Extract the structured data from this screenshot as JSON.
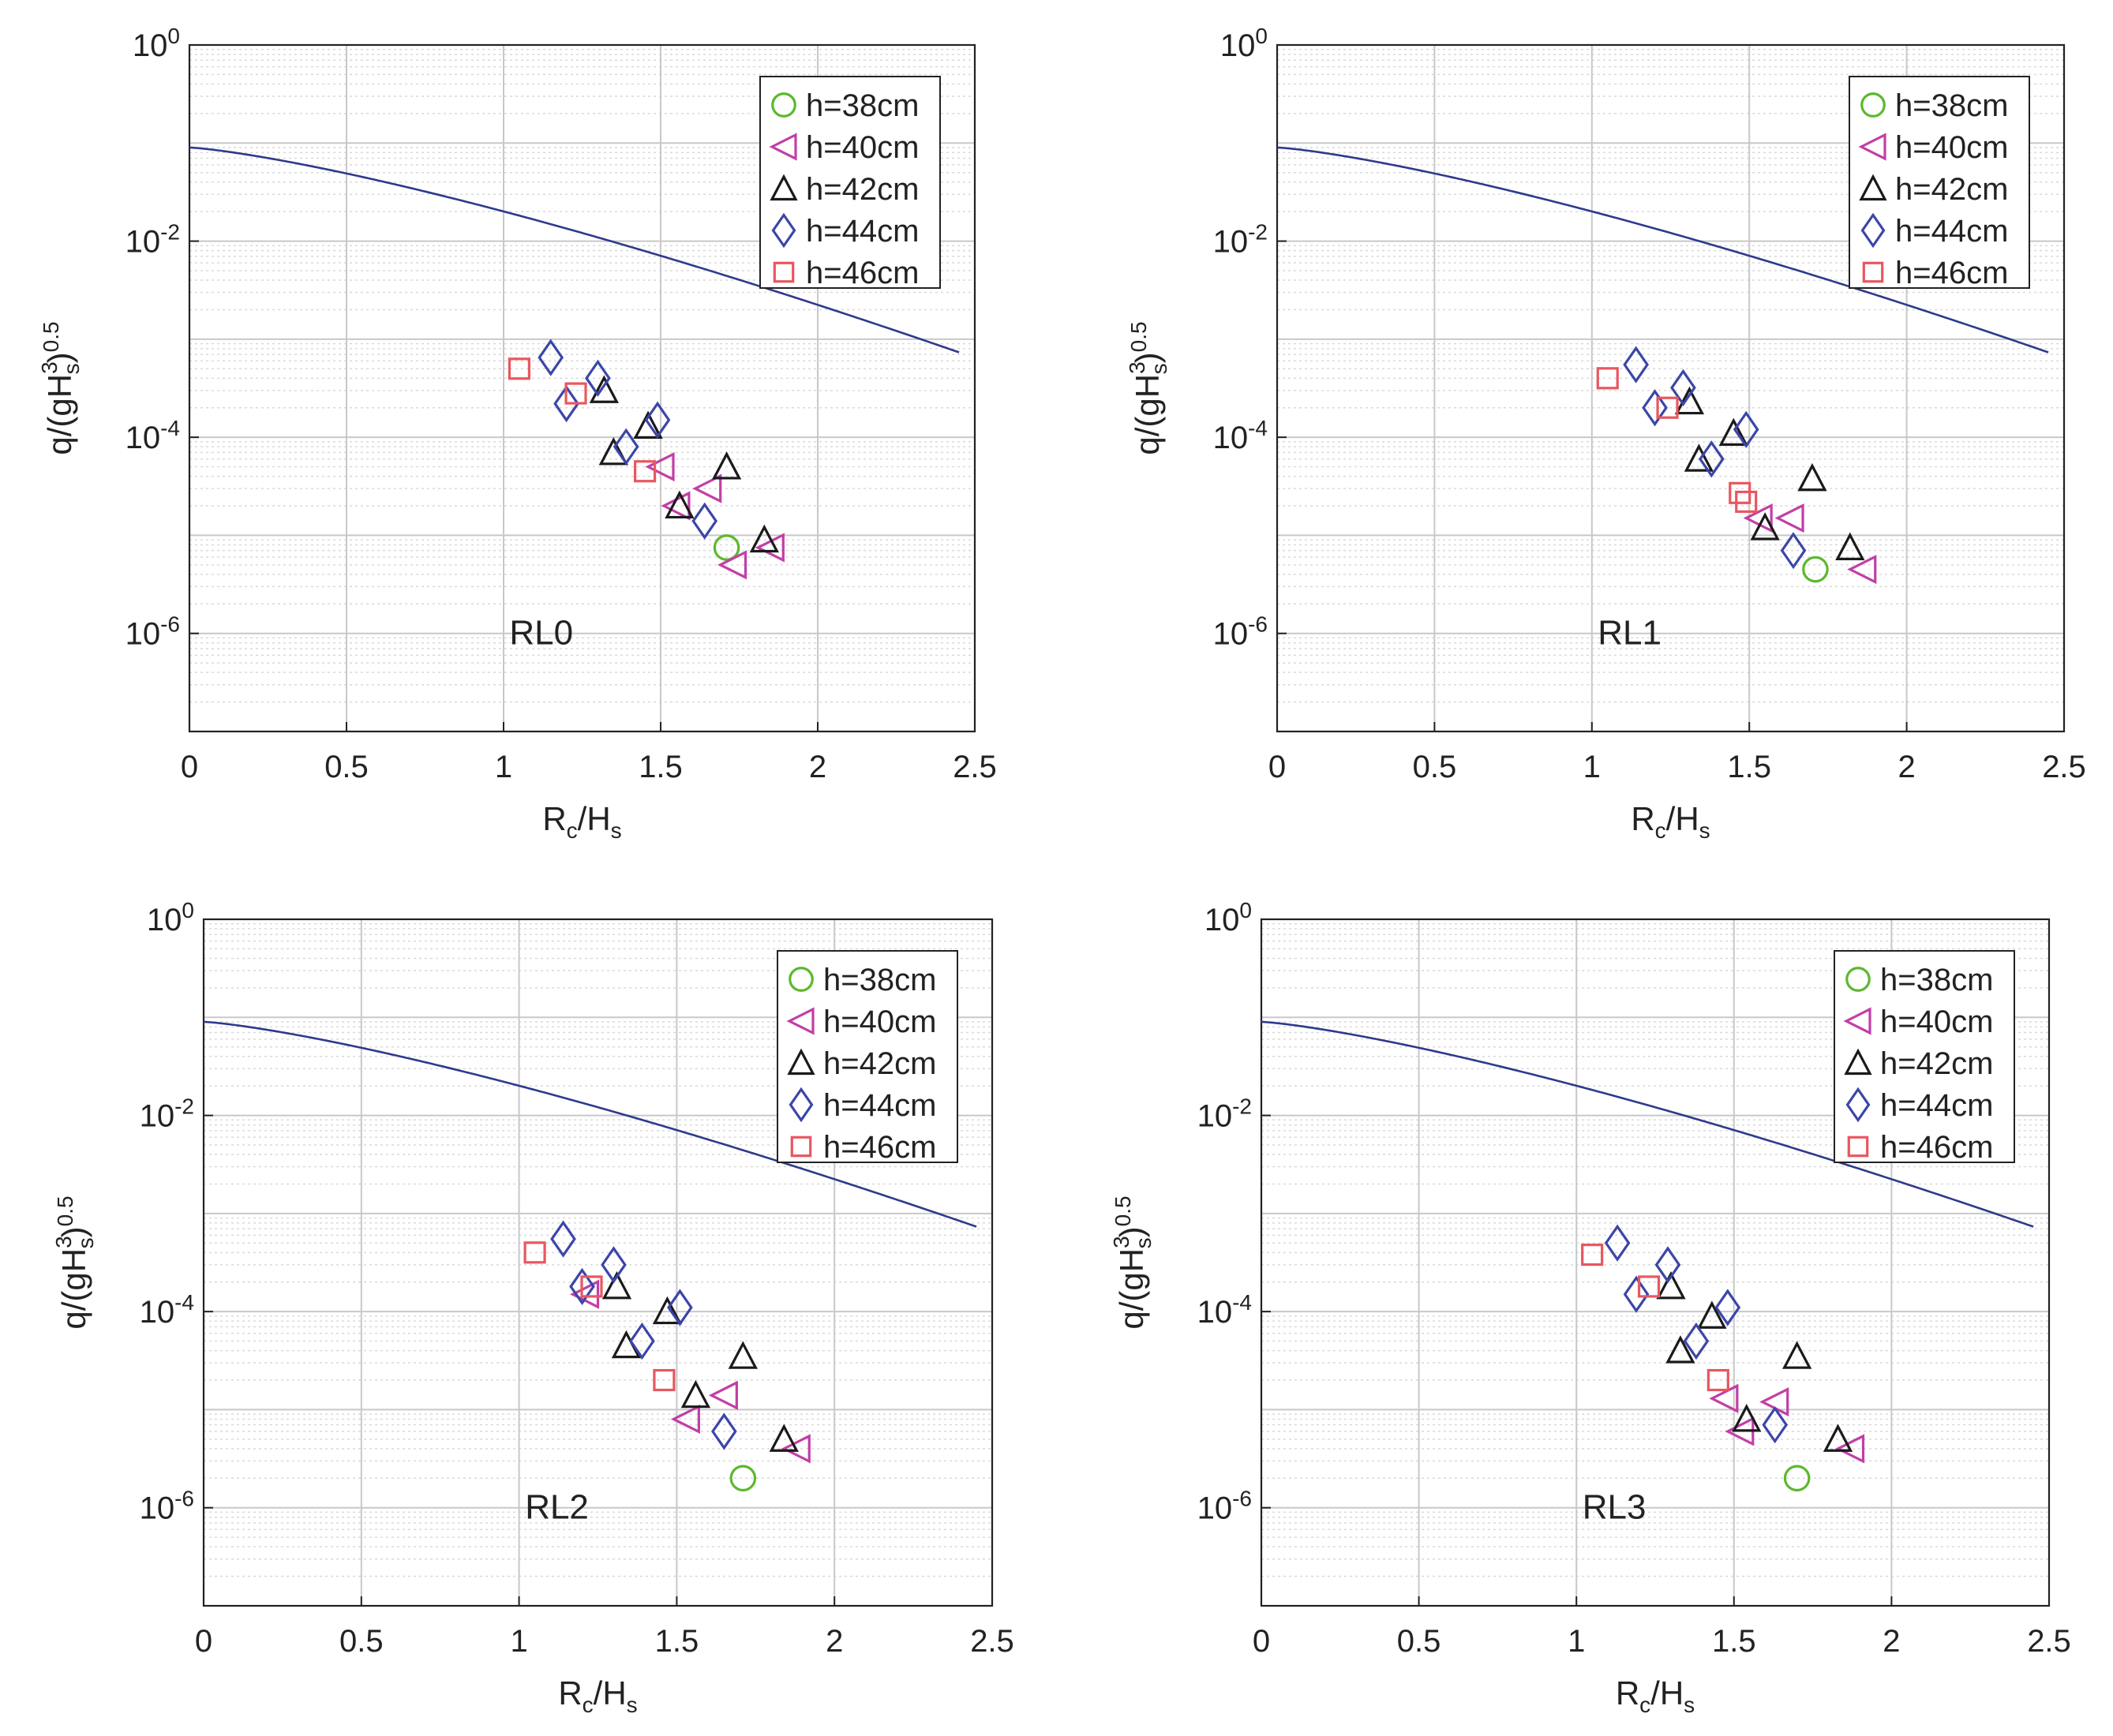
{
  "styles": {
    "curve_color": "#2e3a8c",
    "grid_major": "#c8c8c8",
    "grid_minor": "#d9d9d9",
    "axis_color": "#222222",
    "series_colors": {
      "h=38cm": "#5cb82e",
      "h=40cm": "#c13fa6",
      "h=42cm": "#1a1a1a",
      "h=44cm": "#3b46a8",
      "h=46cm": "#e8575f"
    },
    "series_markers": {
      "h=38cm": "circle",
      "h=40cm": "triangle-left",
      "h=42cm": "triangle-up",
      "h=44cm": "diamond",
      "h=46cm": "square"
    }
  },
  "chart_data": [
    {
      "type": "scatter",
      "panel_label": "RL0",
      "xlabel": "Rc/Hs",
      "ylabel": "q/(gHs3)0.5",
      "xlim": [
        0,
        2.5
      ],
      "ylim": [
        1e-07,
        1
      ],
      "y_scale": "log",
      "grid": true,
      "legend_position": "top-right",
      "x_ticks": [
        "0",
        "0.5",
        "1",
        "1.5",
        "2",
        "2.5"
      ],
      "y_ticks": [
        {
          "base": "10",
          "exp": "0",
          "value": 1
        },
        {
          "base": "10",
          "exp": "-2",
          "value": 0.01
        },
        {
          "base": "10",
          "exp": "-4",
          "value": 0.0001
        },
        {
          "base": "10",
          "exp": "-6",
          "value": 1e-06
        }
      ],
      "curve": {
        "a": 0.09,
        "b": 1.5,
        "c": 1.3,
        "x_max": 2.45
      },
      "series": [
        {
          "name": "h=38cm",
          "points": [
            [
              1.71,
              7.5e-06
            ]
          ]
        },
        {
          "name": "h=40cm",
          "points": [
            [
              1.5,
              5e-05
            ],
            [
              1.55,
              2e-05
            ],
            [
              1.65,
              3e-05
            ],
            [
              1.73,
              5e-06
            ],
            [
              1.85,
              7.5e-06
            ]
          ]
        },
        {
          "name": "h=42cm",
          "points": [
            [
              1.32,
              0.0003
            ],
            [
              1.35,
              7e-05
            ],
            [
              1.46,
              0.00013
            ],
            [
              1.56,
              2e-05
            ],
            [
              1.71,
              5e-05
            ],
            [
              1.83,
              9e-06
            ]
          ]
        },
        {
          "name": "h=44cm",
          "points": [
            [
              1.15,
              0.00065
            ],
            [
              1.2,
              0.00022
            ],
            [
              1.3,
              0.0004
            ],
            [
              1.39,
              8e-05
            ],
            [
              1.49,
              0.00015
            ],
            [
              1.64,
              1.4e-05
            ]
          ]
        },
        {
          "name": "h=46cm",
          "points": [
            [
              1.05,
              0.0005
            ],
            [
              1.23,
              0.00028
            ],
            [
              1.45,
              4.5e-05
            ]
          ]
        }
      ]
    },
    {
      "type": "scatter",
      "panel_label": "RL1",
      "xlabel": "Rc/Hs",
      "ylabel": "q/(gHs3)0.5",
      "xlim": [
        0,
        2.5
      ],
      "ylim": [
        1e-07,
        1
      ],
      "y_scale": "log",
      "grid": true,
      "legend_position": "top-right",
      "x_ticks": [
        "0",
        "0.5",
        "1",
        "1.5",
        "2",
        "2.5"
      ],
      "y_ticks": [
        {
          "base": "10",
          "exp": "0",
          "value": 1
        },
        {
          "base": "10",
          "exp": "-2",
          "value": 0.01
        },
        {
          "base": "10",
          "exp": "-4",
          "value": 0.0001
        },
        {
          "base": "10",
          "exp": "-6",
          "value": 1e-06
        }
      ],
      "curve": {
        "a": 0.09,
        "b": 1.5,
        "c": 1.3,
        "x_max": 2.45
      },
      "series": [
        {
          "name": "h=38cm",
          "points": [
            [
              1.71,
              4.5e-06
            ]
          ]
        },
        {
          "name": "h=40cm",
          "points": [
            [
              1.53,
              1.5e-05
            ],
            [
              1.63,
              1.5e-05
            ],
            [
              1.86,
              4.5e-06
            ]
          ]
        },
        {
          "name": "h=42cm",
          "points": [
            [
              1.31,
              0.00023
            ],
            [
              1.34,
              6e-05
            ],
            [
              1.45,
              0.00011
            ],
            [
              1.55,
              1.2e-05
            ],
            [
              1.7,
              3.8e-05
            ],
            [
              1.82,
              7.5e-06
            ]
          ]
        },
        {
          "name": "h=44cm",
          "points": [
            [
              1.14,
              0.00055
            ],
            [
              1.2,
              0.0002
            ],
            [
              1.29,
              0.00032
            ],
            [
              1.38,
              6e-05
            ],
            [
              1.49,
              0.00012
            ],
            [
              1.64,
              7e-06
            ]
          ]
        },
        {
          "name": "h=46cm",
          "points": [
            [
              1.05,
              0.0004
            ],
            [
              1.24,
              0.0002
            ],
            [
              1.47,
              2.7e-05
            ],
            [
              1.49,
              2.2e-05
            ]
          ]
        }
      ]
    },
    {
      "type": "scatter",
      "panel_label": "RL2",
      "xlabel": "Rc/Hs",
      "ylabel": "q/(gHs3)0.5",
      "xlim": [
        0,
        2.5
      ],
      "ylim": [
        1e-07,
        1
      ],
      "y_scale": "log",
      "grid": true,
      "legend_position": "top-right",
      "x_ticks": [
        "0",
        "0.5",
        "1",
        "1.5",
        "2",
        "2.5"
      ],
      "y_ticks": [
        {
          "base": "10",
          "exp": "0",
          "value": 1
        },
        {
          "base": "10",
          "exp": "-2",
          "value": 0.01
        },
        {
          "base": "10",
          "exp": "-4",
          "value": 0.0001
        },
        {
          "base": "10",
          "exp": "-6",
          "value": 1e-06
        }
      ],
      "curve": {
        "a": 0.09,
        "b": 1.5,
        "c": 1.3,
        "x_max": 2.45
      },
      "series": [
        {
          "name": "h=38cm",
          "points": [
            [
              1.71,
              2e-06
            ]
          ]
        },
        {
          "name": "h=40cm",
          "points": [
            [
              1.21,
              0.00015
            ],
            [
              1.53,
              8e-06
            ],
            [
              1.65,
              1.4e-05
            ],
            [
              1.88,
              4e-06
            ]
          ]
        },
        {
          "name": "h=42cm",
          "points": [
            [
              1.31,
              0.00018
            ],
            [
              1.34,
              4.5e-05
            ],
            [
              1.47,
              0.0001
            ],
            [
              1.56,
              1.4e-05
            ],
            [
              1.71,
              3.5e-05
            ],
            [
              1.84,
              5e-06
            ]
          ]
        },
        {
          "name": "h=44cm",
          "points": [
            [
              1.14,
              0.00055
            ],
            [
              1.2,
              0.00018
            ],
            [
              1.3,
              0.0003
            ],
            [
              1.39,
              5e-05
            ],
            [
              1.51,
              0.00011
            ],
            [
              1.65,
              6e-06
            ]
          ]
        },
        {
          "name": "h=46cm",
          "points": [
            [
              1.05,
              0.0004
            ],
            [
              1.23,
              0.00018
            ],
            [
              1.46,
              2e-05
            ]
          ]
        }
      ]
    },
    {
      "type": "scatter",
      "panel_label": "RL3",
      "xlabel": "Rc/Hs",
      "ylabel": "q/(gHs3)0.5",
      "xlim": [
        0,
        2.5
      ],
      "ylim": [
        1e-07,
        1
      ],
      "y_scale": "log",
      "grid": true,
      "legend_position": "top-right",
      "x_ticks": [
        "0",
        "0.5",
        "1",
        "1.5",
        "2",
        "2.5"
      ],
      "y_ticks": [
        {
          "base": "10",
          "exp": "0",
          "value": 1
        },
        {
          "base": "10",
          "exp": "-2",
          "value": 0.01
        },
        {
          "base": "10",
          "exp": "-4",
          "value": 0.0001
        },
        {
          "base": "10",
          "exp": "-6",
          "value": 1e-06
        }
      ],
      "curve": {
        "a": 0.09,
        "b": 1.5,
        "c": 1.3,
        "x_max": 2.45
      },
      "series": [
        {
          "name": "h=38cm",
          "points": [
            [
              1.7,
              2e-06
            ]
          ]
        },
        {
          "name": "h=40cm",
          "points": [
            [
              1.47,
              1.3e-05
            ],
            [
              1.52,
              6e-06
            ],
            [
              1.63,
              1.2e-05
            ],
            [
              1.87,
              4e-06
            ]
          ]
        },
        {
          "name": "h=42cm",
          "points": [
            [
              1.3,
              0.00018
            ],
            [
              1.33,
              4e-05
            ],
            [
              1.43,
              9e-05
            ],
            [
              1.54,
              8e-06
            ],
            [
              1.7,
              3.5e-05
            ],
            [
              1.83,
              5e-06
            ]
          ]
        },
        {
          "name": "h=44cm",
          "points": [
            [
              1.13,
              0.0005
            ],
            [
              1.19,
              0.00015
            ],
            [
              1.29,
              0.0003
            ],
            [
              1.38,
              5e-05
            ],
            [
              1.48,
              0.00011
            ],
            [
              1.63,
              7e-06
            ]
          ]
        },
        {
          "name": "h=46cm",
          "points": [
            [
              1.05,
              0.00038
            ],
            [
              1.23,
              0.00018
            ],
            [
              1.45,
              2e-05
            ]
          ]
        }
      ]
    }
  ]
}
